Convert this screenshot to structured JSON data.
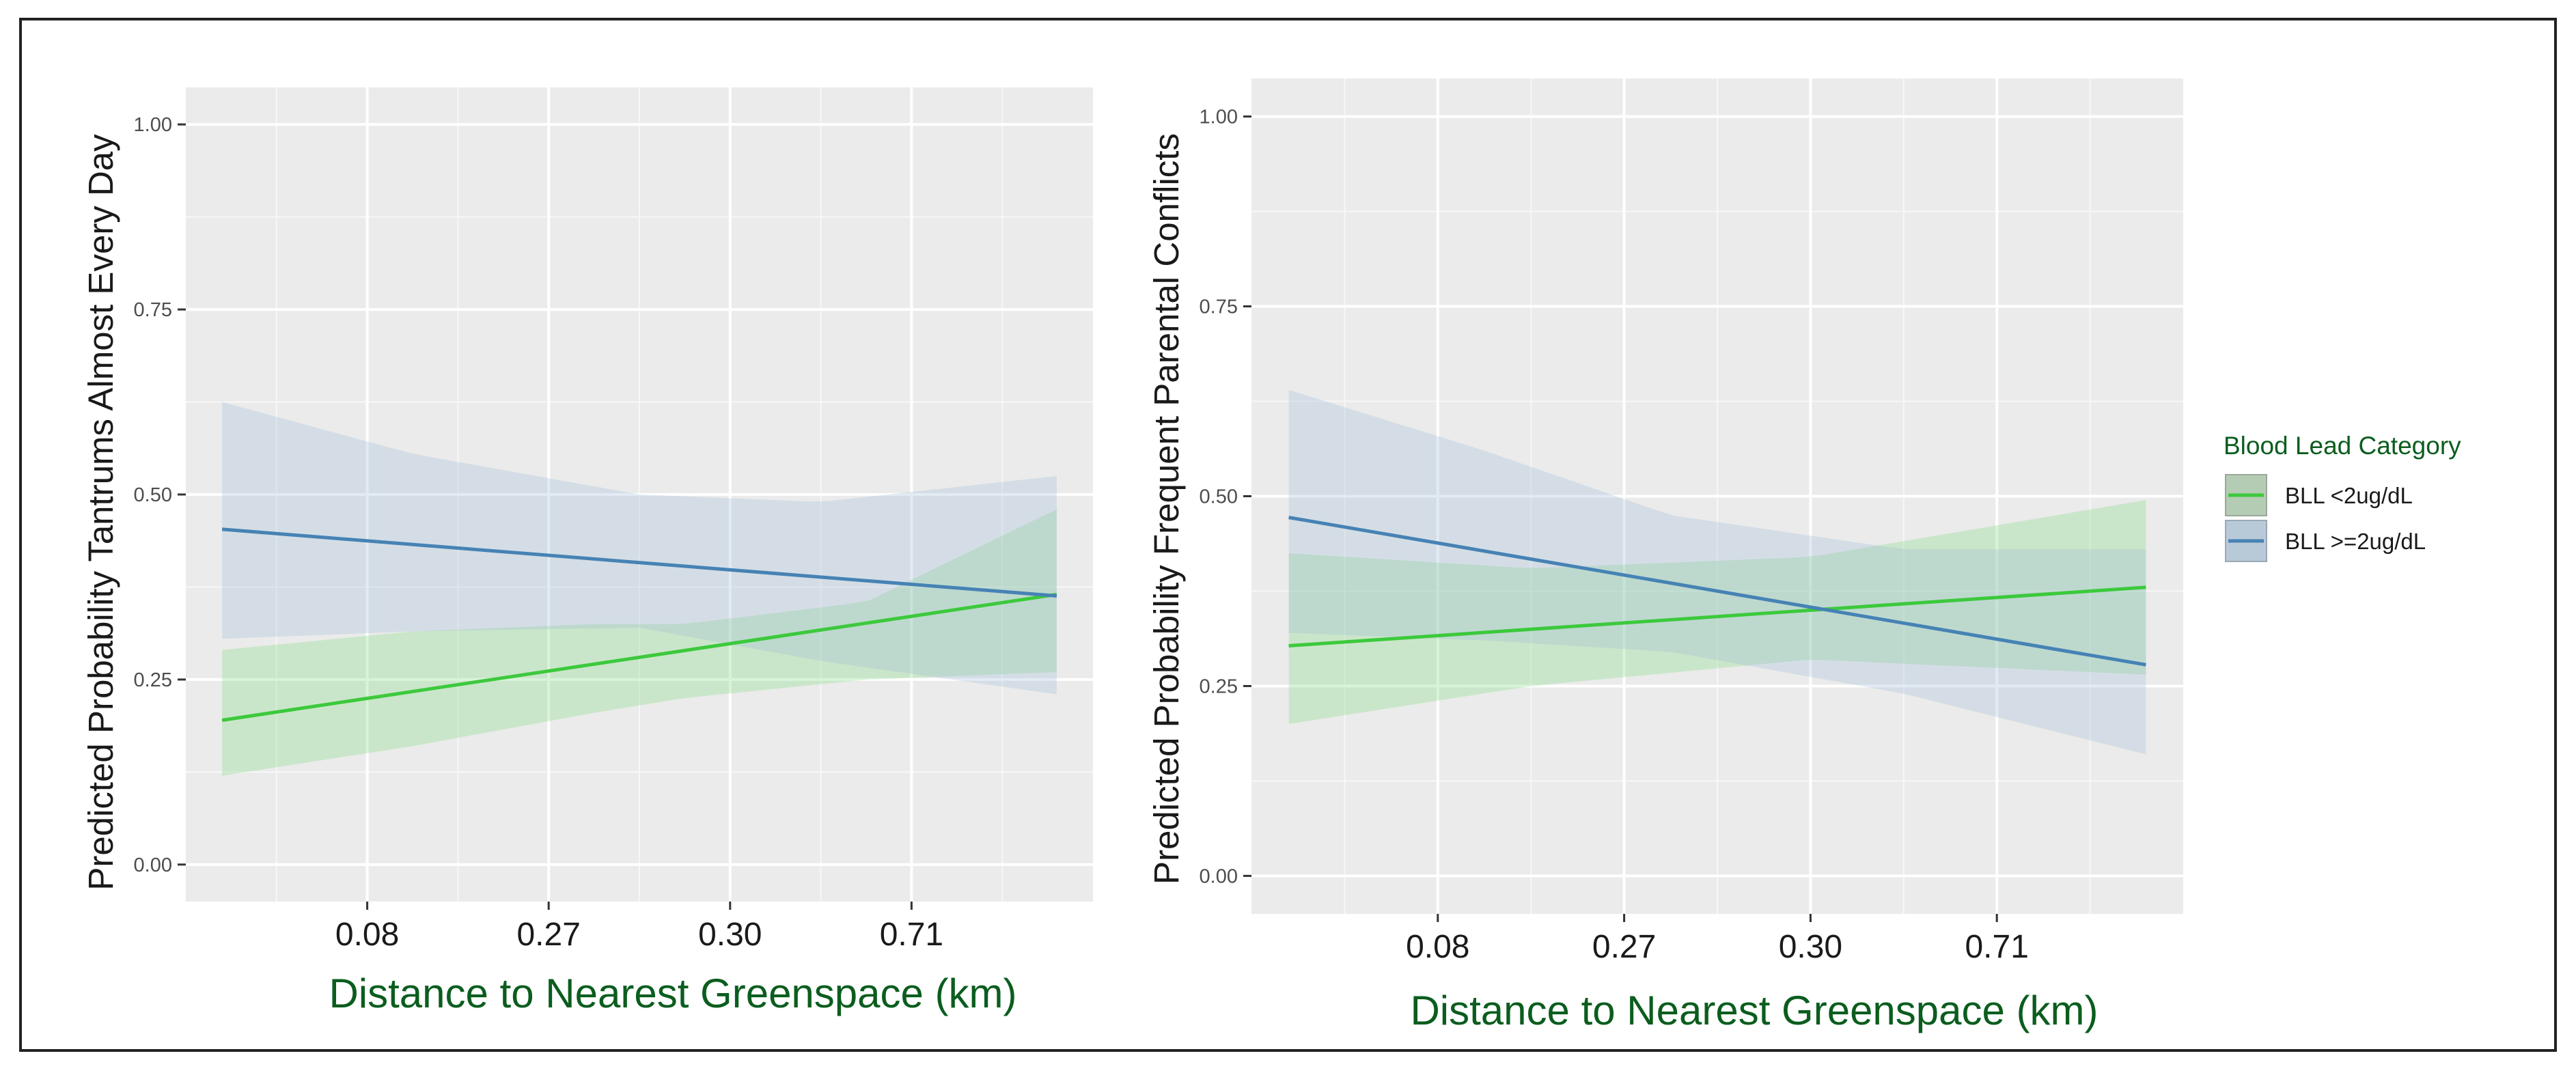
{
  "chart_data": [
    {
      "type": "line",
      "title": "",
      "xlabel": "Distance to Nearest Greenspace (km)",
      "ylabel": "Predicted Probability Tantrums Almost Every Day",
      "x_tick_labels": [
        "0.08",
        "0.27",
        "0.30",
        "0.71"
      ],
      "x_tick_positions": [
        0.2,
        0.4,
        0.6,
        0.8
      ],
      "xlim": [
        0,
        1
      ],
      "ylim": [
        0,
        1
      ],
      "y_ticks": [
        0,
        0.25,
        0.5,
        0.75,
        1
      ],
      "y_tick_labels": [
        "0.00",
        "0.25",
        "0.50",
        "0.75",
        "1.00"
      ],
      "grid": true,
      "series": [
        {
          "name": "BLL <2ug/dL",
          "color": "#3cc93c",
          "band_color": "#7fdc7f",
          "x": [
            0.04,
            0.96
          ],
          "y": [
            0.195,
            0.365
          ],
          "band_x": [
            0.04,
            0.25,
            0.45,
            0.55,
            0.75,
            0.96
          ],
          "band_lower": [
            0.12,
            0.16,
            0.205,
            0.225,
            0.25,
            0.26
          ],
          "band_upper": [
            0.29,
            0.315,
            0.325,
            0.325,
            0.355,
            0.48
          ]
        },
        {
          "name": "BLL >=2ug/dL",
          "color": "#4682b4",
          "band_color": "#9fbcd7",
          "x": [
            0.04,
            0.96
          ],
          "y": [
            0.453,
            0.363
          ],
          "band_x": [
            0.04,
            0.25,
            0.5,
            0.7,
            0.96
          ],
          "band_lower": [
            0.305,
            0.315,
            0.32,
            0.275,
            0.23
          ],
          "band_upper": [
            0.625,
            0.555,
            0.5,
            0.49,
            0.525
          ]
        }
      ]
    },
    {
      "type": "line",
      "title": "",
      "xlabel": "Distance to Nearest Greenspace (km)",
      "ylabel": "Predicted Probability Frequent Parental Conflicts",
      "x_tick_labels": [
        "0.08",
        "0.27",
        "0.30",
        "0.71"
      ],
      "x_tick_positions": [
        0.2,
        0.4,
        0.6,
        0.8
      ],
      "xlim": [
        0,
        1
      ],
      "ylim": [
        0,
        1
      ],
      "y_ticks": [
        0,
        0.25,
        0.5,
        0.75,
        1
      ],
      "y_tick_labels": [
        "0.00",
        "0.25",
        "0.50",
        "0.75",
        "1.00"
      ],
      "grid": true,
      "series": [
        {
          "name": "BLL <2ug/dL",
          "color": "#3cc93c",
          "band_color": "#7fdc7f",
          "x": [
            0.04,
            0.96
          ],
          "y": [
            0.303,
            0.38
          ],
          "band_x": [
            0.04,
            0.3,
            0.6,
            0.96
          ],
          "band_lower": [
            0.2,
            0.25,
            0.285,
            0.265
          ],
          "band_upper": [
            0.425,
            0.405,
            0.42,
            0.495
          ]
        },
        {
          "name": "BLL >=2ug/dL",
          "color": "#4682b4",
          "band_color": "#9fbcd7",
          "x": [
            0.04,
            0.96
          ],
          "y": [
            0.472,
            0.278
          ],
          "band_x": [
            0.04,
            0.25,
            0.45,
            0.7,
            0.96
          ],
          "band_lower": [
            0.32,
            0.31,
            0.295,
            0.24,
            0.16
          ],
          "band_upper": [
            0.64,
            0.56,
            0.475,
            0.43,
            0.43
          ]
        }
      ]
    }
  ],
  "legend": {
    "title": "Blood Lead Category",
    "position": "right",
    "entries": [
      {
        "label": "BLL <2ug/dL",
        "color": "#3cc93c",
        "fill": "#b4ccb4"
      },
      {
        "label": "BLL >=2ug/dL",
        "color": "#4682b4",
        "fill": "#b8c9d8"
      }
    ]
  }
}
